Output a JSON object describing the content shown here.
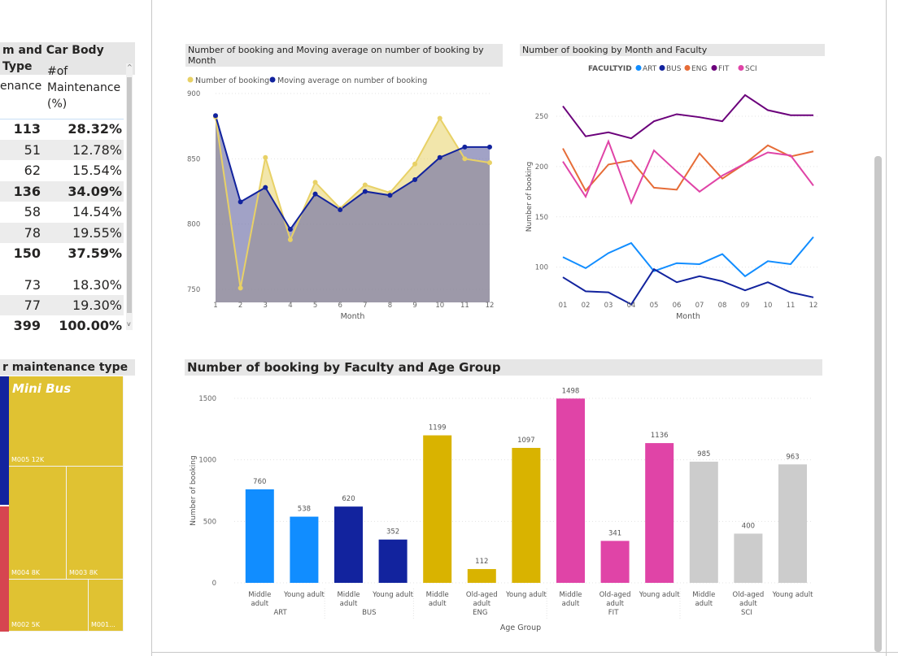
{
  "table": {
    "title": "m and Car Body Type",
    "col1_header": "enance",
    "col2_header_lines": [
      "#of",
      "Maintenance",
      "(%)"
    ],
    "rows": [
      {
        "count": "113",
        "pct": "28.32%",
        "bold": true
      },
      {
        "count": "51",
        "pct": "12.78%",
        "bold": false
      },
      {
        "count": "62",
        "pct": "15.54%",
        "bold": false
      },
      {
        "count": "136",
        "pct": "34.09%",
        "bold": true
      },
      {
        "count": "58",
        "pct": "14.54%",
        "bold": false
      },
      {
        "count": "78",
        "pct": "19.55%",
        "bold": false
      },
      {
        "count": "150",
        "pct": "37.59%",
        "bold": true
      },
      {
        "count": "73",
        "pct": "18.30%",
        "bold": false
      },
      {
        "count": "77",
        "pct": "19.30%",
        "bold": false
      },
      {
        "count": "399",
        "pct": "100.00%",
        "bold": true
      }
    ]
  },
  "treemap": {
    "title": "r maintenance type",
    "main_label": "Mini Bus",
    "cells": [
      "M005 12K",
      "M004 8K",
      "M003 8K",
      "M002 5K",
      "M001..."
    ]
  },
  "colors": {
    "ART": "#118dff",
    "BUS": "#12239e",
    "ENG": "#e66c37",
    "FIT": "#6b007b",
    "SCI": "#e044a7",
    "booking": "#e8d166",
    "moving_avg": "#12239e",
    "bar_eng": "#d9b300",
    "bar_sci": "#cccccc",
    "treemap_yellow": "#e0c232",
    "treemap_blue": "#12239e",
    "treemap_red": "#d64550"
  },
  "chart_data": [
    {
      "type": "area",
      "title": "Number of booking and Moving average on number of booking by Month",
      "xlabel": "Month",
      "ylabel": "",
      "x": [
        1,
        2,
        3,
        4,
        5,
        6,
        7,
        8,
        9,
        10,
        11,
        12
      ],
      "ylim": [
        740,
        900
      ],
      "yticks": [
        750,
        800,
        850,
        900
      ],
      "series": [
        {
          "name": "Number of booking",
          "values": [
            882,
            751,
            851,
            788,
            832,
            812,
            830,
            824,
            846,
            881,
            850,
            847
          ]
        },
        {
          "name": "Moving average on number of booking",
          "values": [
            883,
            817,
            828,
            796,
            823,
            811,
            825,
            822,
            834,
            851,
            859,
            859
          ]
        }
      ],
      "legend_position": "top-left"
    },
    {
      "type": "line",
      "title": "Number of booking by Month and Faculty",
      "xlabel": "Month",
      "ylabel": "Number of booking",
      "legend_title": "FACULTYID",
      "categories": [
        "01",
        "02",
        "03",
        "04",
        "05",
        "06",
        "07",
        "08",
        "09",
        "10",
        "11",
        "12"
      ],
      "ylim": [
        65,
        275
      ],
      "yticks": [
        100,
        150,
        200,
        250
      ],
      "series": [
        {
          "name": "ART",
          "values": [
            110,
            99,
            114,
            124,
            96,
            104,
            103,
            113,
            91,
            106,
            103,
            130
          ]
        },
        {
          "name": "BUS",
          "values": [
            90,
            76,
            75,
            63,
            98,
            85,
            91,
            86,
            77,
            85,
            75,
            70
          ]
        },
        {
          "name": "ENG",
          "values": [
            218,
            176,
            202,
            206,
            179,
            177,
            213,
            188,
            203,
            221,
            210,
            215
          ]
        },
        {
          "name": "FIT",
          "values": [
            260,
            230,
            234,
            228,
            245,
            252,
            249,
            245,
            271,
            256,
            251,
            251
          ]
        },
        {
          "name": "SCI",
          "values": [
            205,
            170,
            225,
            164,
            216,
            195,
            175,
            191,
            203,
            214,
            211,
            181
          ]
        }
      ],
      "legend_position": "top-center"
    },
    {
      "type": "bar",
      "title": "Number of booking by Faculty and Age Group",
      "xlabel": "Age Group",
      "ylabel": "Number of booking",
      "ylim": [
        0,
        1500
      ],
      "yticks": [
        0,
        500,
        1000,
        1500
      ],
      "groups": [
        {
          "faculty": "ART",
          "bars": [
            {
              "age": "Middle adult",
              "value": 760
            },
            {
              "age": "Young adult",
              "value": 538
            }
          ]
        },
        {
          "faculty": "BUS",
          "bars": [
            {
              "age": "Middle adult",
              "value": 620
            },
            {
              "age": "Young adult",
              "value": 352
            }
          ]
        },
        {
          "faculty": "ENG",
          "bars": [
            {
              "age": "Middle adult",
              "value": 1199
            },
            {
              "age": "Old-aged adult",
              "value": 112
            },
            {
              "age": "Young adult",
              "value": 1097
            }
          ]
        },
        {
          "faculty": "FIT",
          "bars": [
            {
              "age": "Middle adult",
              "value": 1498
            },
            {
              "age": "Old-aged adult",
              "value": 341
            },
            {
              "age": "Young adult",
              "value": 1136
            }
          ]
        },
        {
          "faculty": "SCI",
          "bars": [
            {
              "age": "Middle adult",
              "value": 985
            },
            {
              "age": "Old-aged adult",
              "value": 400
            },
            {
              "age": "Young adult",
              "value": 963
            }
          ]
        }
      ]
    }
  ]
}
